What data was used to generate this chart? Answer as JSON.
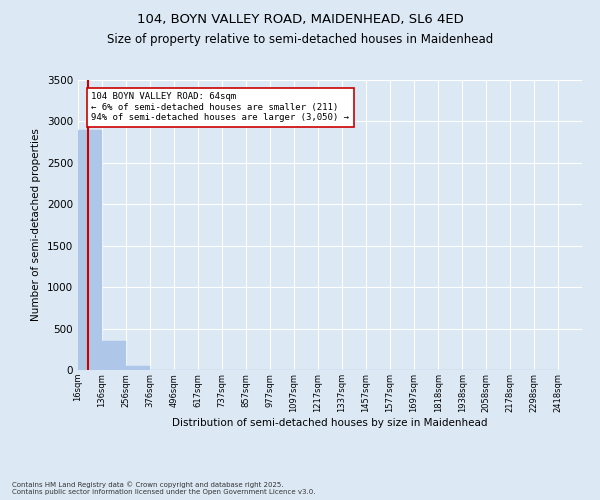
{
  "title_line1": "104, BOYN VALLEY ROAD, MAIDENHEAD, SL6 4ED",
  "title_line2": "Size of property relative to semi-detached houses in Maidenhead",
  "xlabel": "Distribution of semi-detached houses by size in Maidenhead",
  "ylabel": "Number of semi-detached properties",
  "footnote": "Contains HM Land Registry data © Crown copyright and database right 2025.\nContains public sector information licensed under the Open Government Licence v3.0.",
  "bin_labels": [
    "16sqm",
    "136sqm",
    "256sqm",
    "376sqm",
    "496sqm",
    "617sqm",
    "737sqm",
    "857sqm",
    "977sqm",
    "1097sqm",
    "1217sqm",
    "1337sqm",
    "1457sqm",
    "1577sqm",
    "1697sqm",
    "1818sqm",
    "1938sqm",
    "2058sqm",
    "2178sqm",
    "2298sqm",
    "2418sqm"
  ],
  "bin_edges": [
    16,
    136,
    256,
    376,
    496,
    617,
    737,
    857,
    977,
    1097,
    1217,
    1337,
    1457,
    1577,
    1697,
    1818,
    1938,
    2058,
    2178,
    2298,
    2418
  ],
  "bar_heights": [
    2900,
    350,
    50,
    5,
    2,
    1,
    0,
    0,
    0,
    0,
    0,
    0,
    0,
    0,
    0,
    0,
    0,
    0,
    0,
    0
  ],
  "bar_color": "#aec6e8",
  "bar_edgecolor": "#aec6e8",
  "property_size": 64,
  "property_line_color": "#cc0000",
  "annotation_text": "104 BOYN VALLEY ROAD: 64sqm\n← 6% of semi-detached houses are smaller (211)\n94% of semi-detached houses are larger (3,050) →",
  "annotation_box_color": "#ffffff",
  "annotation_box_edgecolor": "#cc0000",
  "ylim": [
    0,
    3500
  ],
  "yticks": [
    0,
    500,
    1000,
    1500,
    2000,
    2500,
    3000,
    3500
  ],
  "bg_color": "#dce9f5",
  "plot_bg_color": "#dce9f5",
  "grid_color": "#ffffff",
  "title_fontsize": 9.5,
  "subtitle_fontsize": 8.5
}
